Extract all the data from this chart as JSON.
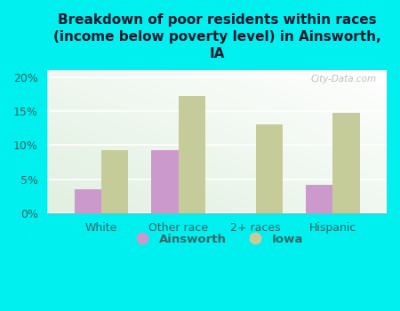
{
  "title": "Breakdown of poor residents within races\n(income below poverty level) in Ainsworth,\nIA",
  "categories": [
    "White",
    "Other race",
    "2+ races",
    "Hispanic"
  ],
  "ainsworth_values": [
    3.5,
    9.2,
    0,
    4.2
  ],
  "iowa_values": [
    9.3,
    17.2,
    13.1,
    14.7
  ],
  "ainsworth_color": "#cc99cc",
  "iowa_color": "#c5cc99",
  "background_color": "#00efef",
  "ylim": [
    0,
    21
  ],
  "yticks": [
    0,
    5,
    10,
    15,
    20
  ],
  "ytick_labels": [
    "0%",
    "5%",
    "10%",
    "15%",
    "20%"
  ],
  "bar_width": 0.35,
  "legend_labels": [
    "Ainsworth",
    "Iowa"
  ],
  "watermark": "City-Data.com",
  "title_color": "#1a1a2e",
  "tick_label_color": "#336666",
  "legend_text_color": "#336666"
}
